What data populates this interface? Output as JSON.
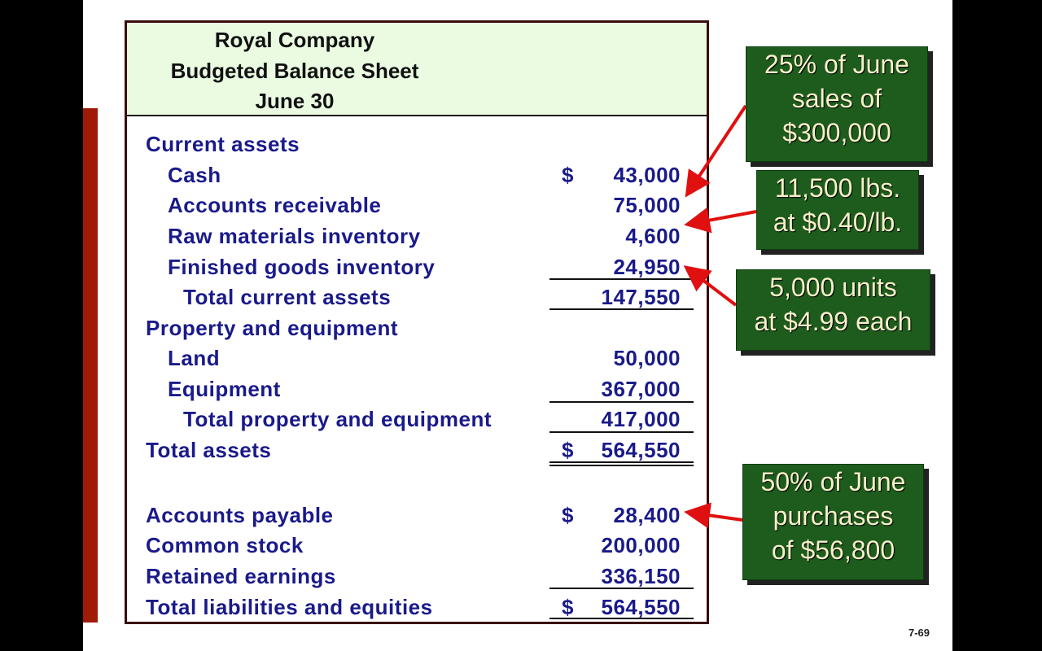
{
  "header": {
    "company": "Royal Company",
    "title": "Budgeted Balance Sheet",
    "date": "June 30"
  },
  "rows": [
    {
      "label": "Current assets",
      "dollar": "",
      "value": ""
    },
    {
      "label": "Cash",
      "dollar": "$",
      "value": "43,000"
    },
    {
      "label": "Accounts receivable",
      "dollar": "",
      "value": "75,000"
    },
    {
      "label": "Raw materials inventory",
      "dollar": "",
      "value": "4,600"
    },
    {
      "label": "Finished goods inventory",
      "dollar": "",
      "value": "24,950"
    },
    {
      "label": "Total current assets",
      "dollar": "",
      "value": "147,550"
    },
    {
      "label": "Property and equipment",
      "dollar": "",
      "value": ""
    },
    {
      "label": "Land",
      "dollar": "",
      "value": "50,000"
    },
    {
      "label": "Equipment",
      "dollar": "",
      "value": "367,000"
    },
    {
      "label": "Total property and equipment",
      "dollar": "",
      "value": "417,000"
    },
    {
      "label": "Total assets",
      "dollar": "$",
      "value": "564,550"
    },
    {
      "label": "Accounts payable",
      "dollar": "$",
      "value": "28,400"
    },
    {
      "label": "Common stock",
      "dollar": "",
      "value": "200,000"
    },
    {
      "label": "Retained earnings",
      "dollar": "",
      "value": "336,150"
    },
    {
      "label": "Total liabilities and equities",
      "dollar": "$",
      "value": "564,550"
    }
  ],
  "callouts": [
    {
      "lines": [
        "25% of June",
        "sales of",
        "$300,000"
      ]
    },
    {
      "lines": [
        "11,500 lbs.",
        "at $0.40/lb."
      ]
    },
    {
      "lines": [
        "5,000 units",
        "at $4.99 each"
      ]
    },
    {
      "lines": [
        "50% of June",
        "purchases",
        "of $56,800"
      ]
    }
  ],
  "page_number": "7-69",
  "colors": {
    "label_text": "#1a1a8a",
    "header_bg": "#eafbe2",
    "callout_bg": "#1e5c1e",
    "arrow": "#e01010",
    "side_bar": "#a01a08"
  }
}
